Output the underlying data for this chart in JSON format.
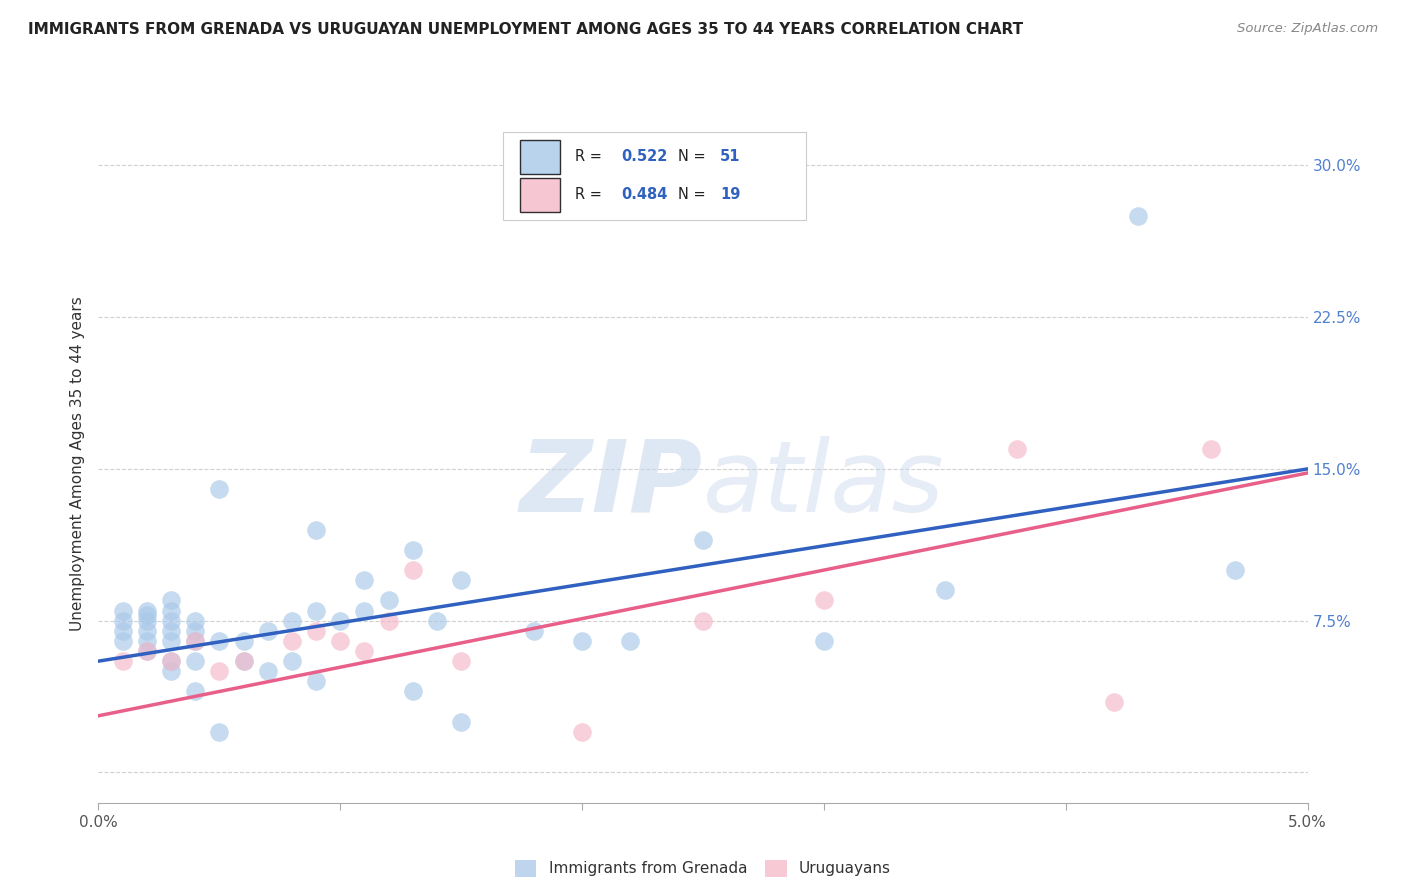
{
  "title": "IMMIGRANTS FROM GRENADA VS URUGUAYAN UNEMPLOYMENT AMONG AGES 35 TO 44 YEARS CORRELATION CHART",
  "source": "Source: ZipAtlas.com",
  "ylabel": "Unemployment Among Ages 35 to 44 years",
  "xlim": [
    0.0,
    0.05
  ],
  "ylim": [
    -0.015,
    0.32
  ],
  "legend1_r": "0.522",
  "legend1_n": "51",
  "legend2_r": "0.484",
  "legend2_n": "19",
  "color_blue": "#a8c8e8",
  "color_pink": "#f4b8c8",
  "line_blue": "#3060c0",
  "line_pink": "#e8608a",
  "legend_text_color": "#3060c0",
  "blue_points_x": [
    0.001,
    0.001,
    0.001,
    0.001,
    0.002,
    0.002,
    0.002,
    0.002,
    0.002,
    0.002,
    0.003,
    0.003,
    0.003,
    0.003,
    0.003,
    0.003,
    0.003,
    0.004,
    0.004,
    0.004,
    0.004,
    0.004,
    0.005,
    0.005,
    0.005,
    0.006,
    0.006,
    0.007,
    0.007,
    0.008,
    0.008,
    0.009,
    0.009,
    0.009,
    0.01,
    0.011,
    0.011,
    0.012,
    0.013,
    0.013,
    0.014,
    0.015,
    0.015,
    0.018,
    0.02,
    0.022,
    0.025,
    0.03,
    0.035,
    0.043,
    0.047
  ],
  "blue_points_y": [
    0.065,
    0.07,
    0.075,
    0.08,
    0.06,
    0.065,
    0.07,
    0.075,
    0.078,
    0.08,
    0.05,
    0.055,
    0.065,
    0.07,
    0.075,
    0.08,
    0.085,
    0.04,
    0.055,
    0.065,
    0.07,
    0.075,
    0.02,
    0.065,
    0.14,
    0.055,
    0.065,
    0.05,
    0.07,
    0.055,
    0.075,
    0.045,
    0.08,
    0.12,
    0.075,
    0.08,
    0.095,
    0.085,
    0.04,
    0.11,
    0.075,
    0.025,
    0.095,
    0.07,
    0.065,
    0.065,
    0.115,
    0.065,
    0.09,
    0.275,
    0.1
  ],
  "pink_points_x": [
    0.001,
    0.002,
    0.003,
    0.004,
    0.005,
    0.006,
    0.008,
    0.009,
    0.01,
    0.011,
    0.012,
    0.013,
    0.015,
    0.02,
    0.025,
    0.03,
    0.038,
    0.042,
    0.046
  ],
  "pink_points_y": [
    0.055,
    0.06,
    0.055,
    0.065,
    0.05,
    0.055,
    0.065,
    0.07,
    0.065,
    0.06,
    0.075,
    0.1,
    0.055,
    0.02,
    0.075,
    0.085,
    0.16,
    0.035,
    0.16
  ],
  "blue_line_x": [
    0.0,
    0.05
  ],
  "blue_line_y": [
    0.055,
    0.15
  ],
  "pink_line_x": [
    0.0,
    0.05
  ],
  "pink_line_y": [
    0.028,
    0.148
  ],
  "watermark_zip": "ZIP",
  "watermark_atlas": "atlas",
  "background_color": "#ffffff",
  "grid_color": "#cccccc",
  "ytick_color": "#5080d0"
}
